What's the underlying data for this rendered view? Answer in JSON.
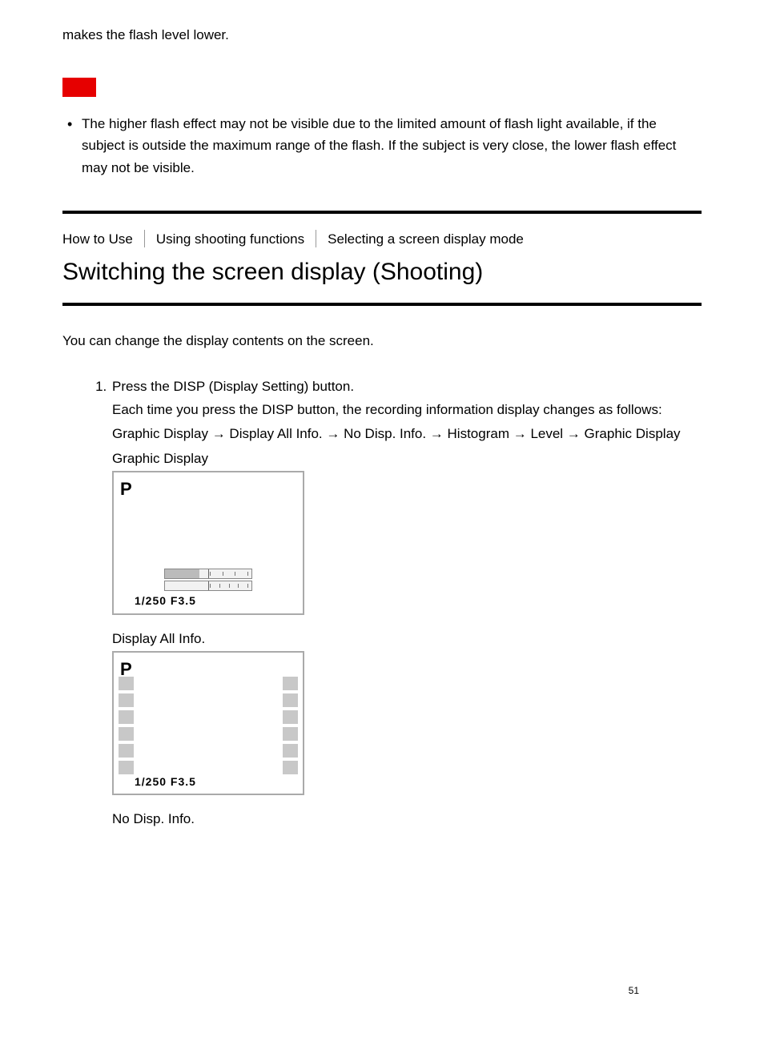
{
  "top_fragment": "makes the flash level lower.",
  "note_bullet": "The higher flash effect may not be visible due to the limited amount of flash light available, if the subject is outside the maximum range of the flash. If the subject is very close, the lower flash effect may not be visible.",
  "breadcrumb": {
    "lvl1": "How to Use",
    "lvl2": "Using shooting functions",
    "lvl3": "Selecting a screen display mode"
  },
  "title": "Switching the screen display (Shooting)",
  "intro": "You can change the display contents on the screen.",
  "step1": {
    "line1": "Press the DISP (Display Setting) button.",
    "line2": "Each time you press the DISP button, the recording information display changes as follows:",
    "sequence": "Graphic Display → Display All Info. → No Disp. Info. → Histogram → Level → Graphic Display"
  },
  "figures": {
    "graphic_display_label": "Graphic Display",
    "display_all_label": "Display All Info.",
    "no_disp_label": "No Disp. Info."
  },
  "lcd": {
    "mode_letter": "P",
    "shutter_aperture": "1/250   F3.5"
  },
  "page_number": "51"
}
